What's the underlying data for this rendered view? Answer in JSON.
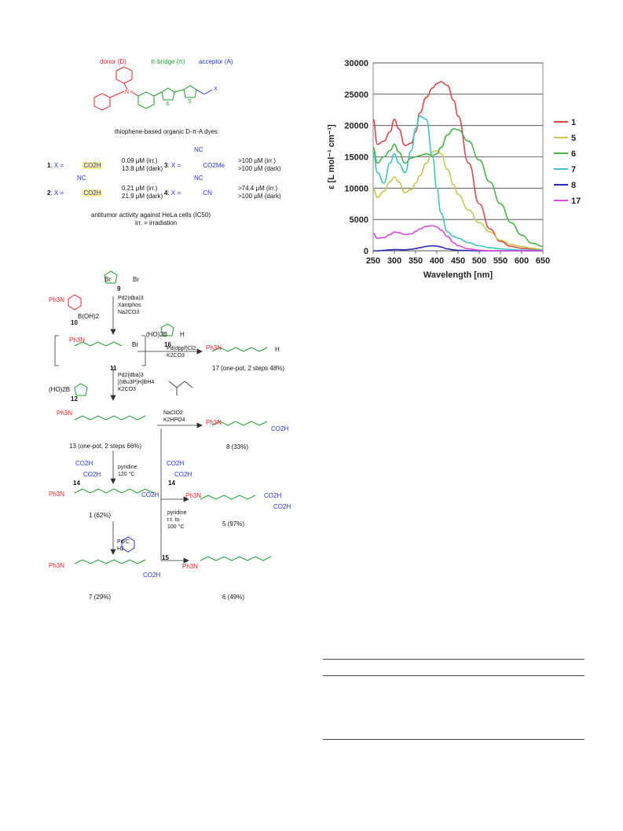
{
  "figure1": {
    "roles": {
      "donor": "donor (D)",
      "bridge": "π-bridge (π)",
      "acceptor": "acceptor (A)"
    },
    "caption": "thiophene-based organic D-π-A dyes",
    "activity_caption": "antitumor activity against HeLa cells (IC50)",
    "irr_note": "irr. = irradiation",
    "compounds": [
      {
        "id": "1",
        "x_label": "X =",
        "group": "CO2H",
        "irr": "0.09 μM (irr.)",
        "dark": "13.8 μM (dark)"
      },
      {
        "id": "2",
        "x_label": "X =",
        "group": "CO2H",
        "nc": "NC",
        "irr": "0.21 μM (irr.)",
        "dark": "21.9 μM (dark)"
      },
      {
        "id": "3",
        "x_label": "X =",
        "group": "CO2Me",
        "nc": "NC",
        "irr": ">100 μM (irr.)",
        "dark": ">100 μM (dark)"
      },
      {
        "id": "4",
        "x_label": "X =",
        "group": "CN",
        "nc": "NC",
        "irr": ">74.4 μM (irr.)",
        "dark": ">100 μM (dark)"
      }
    ]
  },
  "scheme": {
    "labels": {
      "c9": "9",
      "c10": "10",
      "c11": "11",
      "c12": "12",
      "c13": "13 (one-pot, 2 steps 66%)",
      "c14a": "14",
      "c14b": "14",
      "c15": "15",
      "c16": "16",
      "c17": "17 (one-pot, 2 steps 48%)",
      "c8": "8 (33%)",
      "c1": "1 (62%)",
      "c5": "5 (97%)",
      "c7": "7 (29%)",
      "c6": "6 (49%)"
    },
    "reagents": {
      "step1": [
        "Pd2(dba)3",
        "Xantphos",
        "Na2CO3"
      ],
      "step2": [
        "Pd(dppf)Cl2",
        "K2CO3"
      ],
      "step3": [
        "Pd2(dba)3",
        "[(tBu3P)H]BH4",
        "K2CO3"
      ],
      "step4": [
        "NaClO2",
        "K2HPO4"
      ],
      "step5": [
        "pyridine",
        "120 °C"
      ],
      "step6": [
        "pyridine",
        "r.t. to",
        "100 °C"
      ],
      "step7": [
        "Pd/C",
        "H2"
      ]
    },
    "groups": {
      "ph3n": "Ph3N",
      "br": "Br",
      "boh2": "B(OH)2",
      "hoB": "(HO)2B",
      "co2h": "CO2H",
      "h": "H",
      "s": "S"
    }
  },
  "chart_data": {
    "type": "line",
    "xlabel": "Wavelength [nm]",
    "ylabel": "ε [L mol⁻¹ cm⁻¹]",
    "xlim": [
      250,
      650
    ],
    "ylim": [
      0,
      30000
    ],
    "xticks": [
      250,
      300,
      350,
      400,
      450,
      500,
      550,
      600,
      650
    ],
    "yticks": [
      0,
      5000,
      10000,
      15000,
      20000,
      25000,
      30000
    ],
    "grid": "horizontal",
    "legend_position": "right",
    "x": [
      250,
      260,
      275,
      290,
      300,
      310,
      325,
      340,
      350,
      360,
      375,
      390,
      400,
      410,
      425,
      440,
      450,
      475,
      500,
      525,
      550,
      575,
      600,
      625,
      650
    ],
    "series": [
      {
        "name": "1",
        "color": "#d9474b",
        "values": [
          21000,
          17000,
          17500,
          19000,
          21000,
          19500,
          16800,
          17200,
          19000,
          22000,
          24500,
          26000,
          26700,
          27000,
          26400,
          24000,
          21500,
          14000,
          7500,
          3500,
          1500,
          700,
          400,
          300,
          200
        ]
      },
      {
        "name": "5",
        "color": "#c9c64e",
        "values": [
          10000,
          8500,
          9500,
          11000,
          11800,
          11000,
          9300,
          9800,
          10800,
          12000,
          14000,
          15800,
          16000,
          15500,
          13000,
          10500,
          9000,
          6500,
          4500,
          3000,
          1700,
          1000,
          700,
          400,
          200
        ]
      },
      {
        "name": "6",
        "color": "#45b545",
        "values": [
          16500,
          14000,
          15000,
          16000,
          17000,
          15800,
          14000,
          14800,
          15000,
          15200,
          15500,
          15200,
          15500,
          16500,
          18500,
          19500,
          19300,
          17500,
          14500,
          11000,
          7500,
          4500,
          2500,
          1200,
          700
        ]
      },
      {
        "name": "7",
        "color": "#3fc4c4",
        "values": [
          15800,
          12500,
          10800,
          14000,
          15500,
          14000,
          12500,
          16000,
          19500,
          21500,
          21000,
          15000,
          10000,
          6000,
          3000,
          2300,
          2000,
          1300,
          800,
          500,
          300,
          200,
          100,
          100,
          100
        ]
      },
      {
        "name": "8",
        "color": "#2a2ab8",
        "values": [
          0,
          0,
          80,
          150,
          200,
          180,
          150,
          250,
          350,
          500,
          700,
          800,
          750,
          600,
          300,
          150,
          80,
          30,
          0,
          0,
          0,
          0,
          0,
          0,
          0
        ]
      },
      {
        "name": "17",
        "color": "#d74ad7",
        "values": [
          2800,
          2000,
          2100,
          2600,
          3000,
          2900,
          2600,
          2700,
          3100,
          3500,
          3900,
          4000,
          3800,
          3300,
          2300,
          1300,
          800,
          300,
          100,
          0,
          0,
          0,
          0,
          0,
          0
        ]
      }
    ]
  }
}
